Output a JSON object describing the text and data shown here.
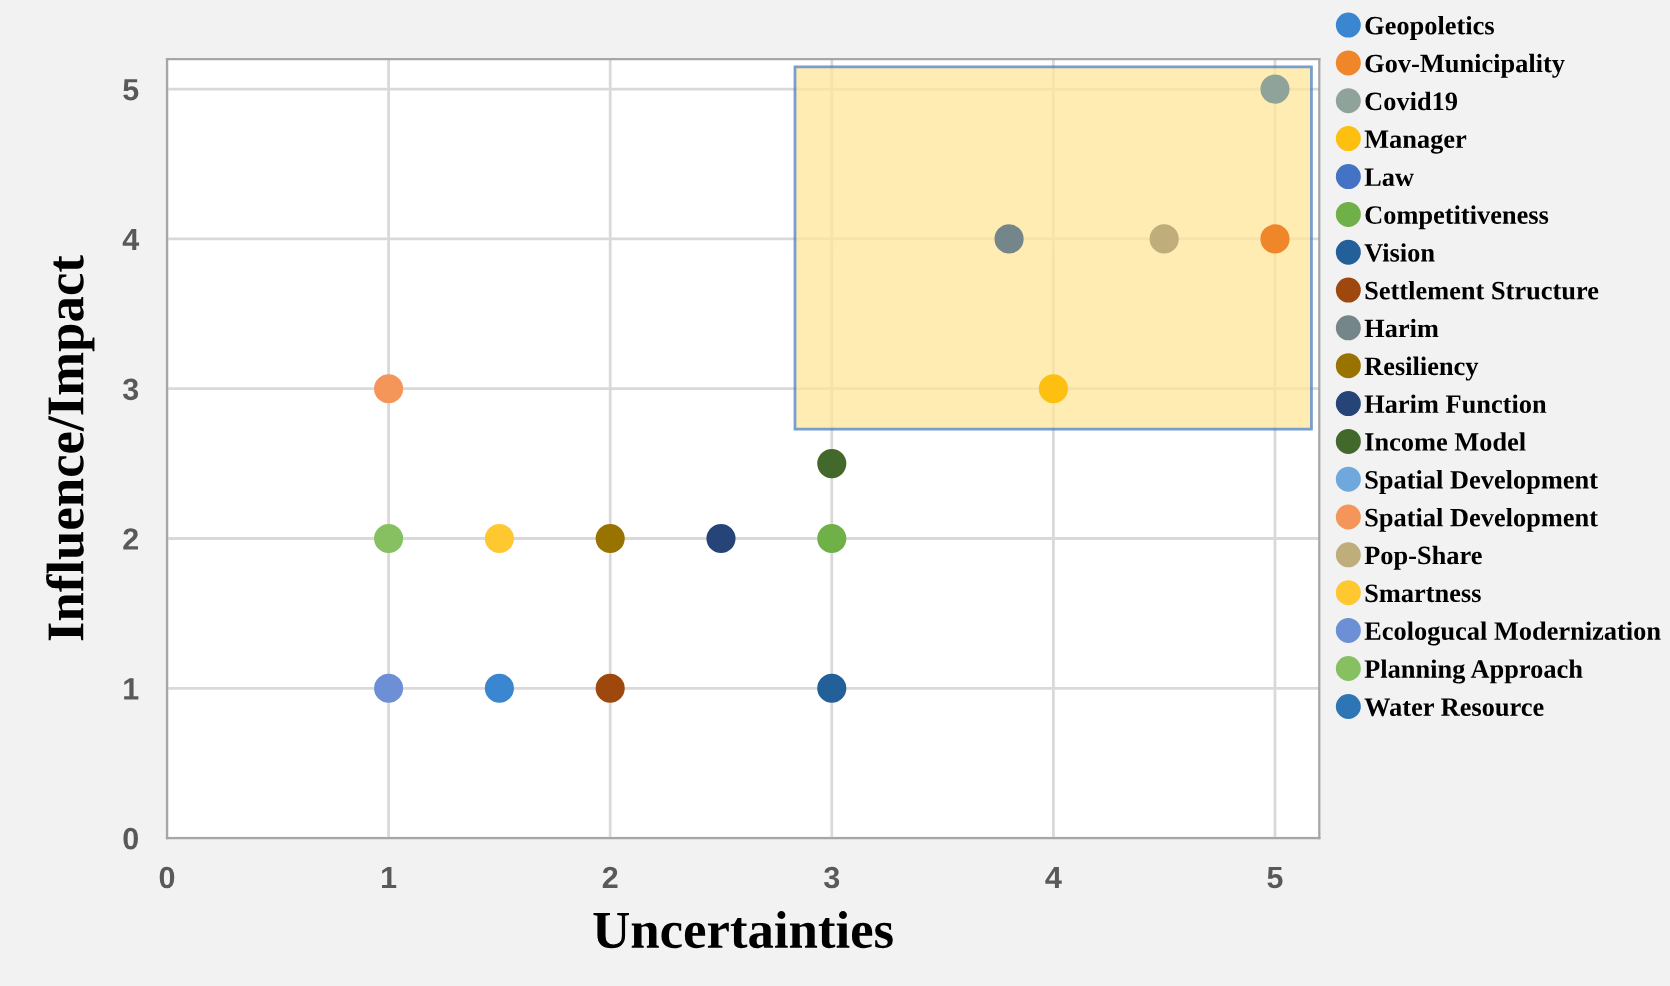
{
  "chart_data": {
    "type": "scatter",
    "xlabel": "Uncertainties",
    "ylabel": "Influence/Impact",
    "xlim": [
      0,
      5.2
    ],
    "ylim": [
      0,
      5.2
    ],
    "xticks": [
      0,
      1,
      2,
      3,
      4,
      5
    ],
    "yticks": [
      0,
      1,
      2,
      3,
      4,
      5
    ],
    "grid": true,
    "legend": "right",
    "marker": "circle",
    "series": [
      {
        "name": "Geopoletics",
        "color": "#3a86d0",
        "x": [
          1.5
        ],
        "values": [
          1
        ]
      },
      {
        "name": "Gov-Municipality",
        "color": "#f0862a",
        "x": [
          5
        ],
        "values": [
          4
        ]
      },
      {
        "name": "Covid19",
        "color": "#8fa39a",
        "x": [
          5
        ],
        "values": [
          5
        ]
      },
      {
        "name": "Manager",
        "color": "#fdc010",
        "x": [
          4
        ],
        "values": [
          3
        ]
      },
      {
        "name": "Law",
        "color": "#4472c4",
        "x": [
          null
        ],
        "values": [
          null
        ]
      },
      {
        "name": "Competitiveness",
        "color": "#70b048",
        "x": [
          3
        ],
        "values": [
          2
        ]
      },
      {
        "name": "Vision",
        "color": "#23609a",
        "x": [
          3
        ],
        "values": [
          1
        ]
      },
      {
        "name": "Settlement Structure",
        "color": "#9e480e",
        "x": [
          2
        ],
        "values": [
          1
        ]
      },
      {
        "name": "Harim",
        "color": "#74868a",
        "x": [
          3.8
        ],
        "values": [
          4
        ]
      },
      {
        "name": "Resiliency",
        "color": "#997300",
        "x": [
          2
        ],
        "values": [
          2
        ]
      },
      {
        "name": "Harim Function",
        "color": "#264478",
        "x": [
          2.5
        ],
        "values": [
          2
        ]
      },
      {
        "name": "Income Model",
        "color": "#43682b",
        "x": [
          3
        ],
        "values": [
          2.5
        ]
      },
      {
        "name": "Spatial Development",
        "color": "#6fa8dc",
        "x": [
          null
        ],
        "values": [
          null
        ]
      },
      {
        "name": "Spatial Development",
        "color": "#f4955a",
        "x": [
          1
        ],
        "values": [
          3
        ]
      },
      {
        "name": "Pop-Share",
        "color": "#bfae7c",
        "x": [
          4.5
        ],
        "values": [
          4
        ]
      },
      {
        "name": "Smartness",
        "color": "#ffc830",
        "x": [
          1.5
        ],
        "values": [
          2
        ]
      },
      {
        "name": "Ecologucal Modernization",
        "color": "#6d8fd6",
        "x": [
          1
        ],
        "values": [
          1
        ]
      },
      {
        "name": "Planning Approach",
        "color": "#86c060",
        "x": [
          1
        ],
        "values": [
          2
        ]
      },
      {
        "name": "Water Resource",
        "color": "#2e75b6",
        "x": [
          null
        ],
        "values": [
          null
        ]
      }
    ]
  }
}
